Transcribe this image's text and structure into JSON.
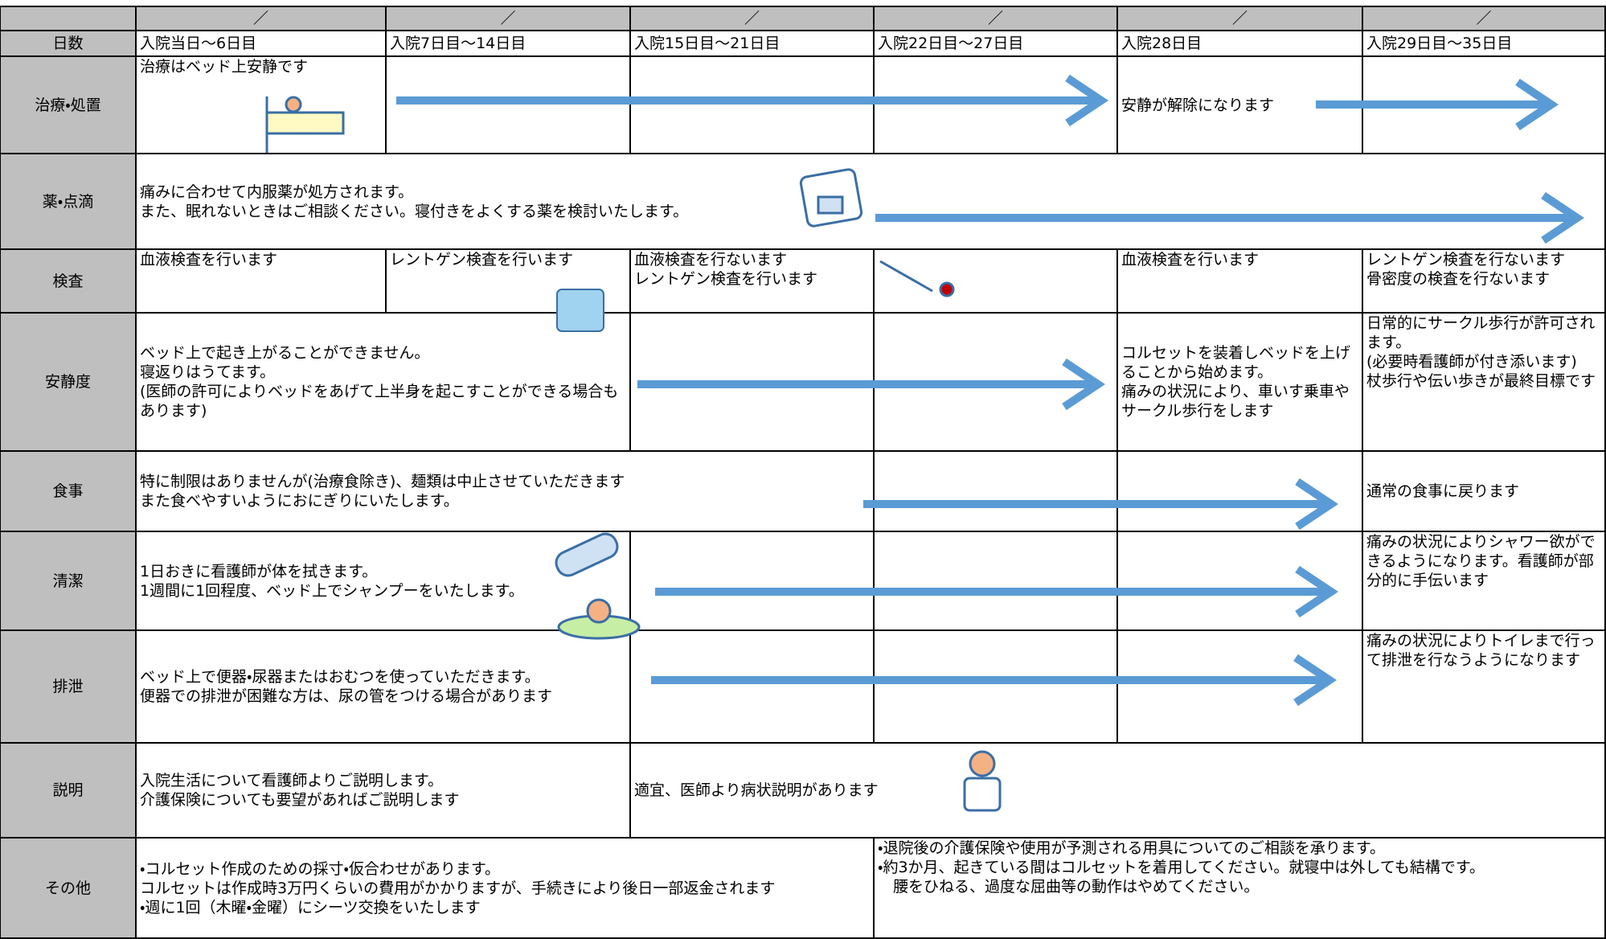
{
  "table": {
    "date_row": [
      "／",
      "／",
      "／",
      "／",
      "／",
      "／"
    ],
    "days_label": "日数",
    "days": [
      "入院当日～6日目",
      "入院7日目～14日目",
      "入院15日目～21日目",
      "入院22日目～27日目",
      "入院28日目",
      "入院29日目～35日目"
    ],
    "rows": [
      {
        "label": "治療・処置",
        "cells": [
          [
            "治療はベッド上安静です"
          ],
          [
            "安静が解除になります"
          ]
        ]
      },
      {
        "label": "薬・点滴",
        "cells": [
          [
            "痛みに合わせて内服薬が処方されます。",
            "また、眠れないときはご相談ください。寝付きをよくする薬を検討いたします。"
          ]
        ]
      },
      {
        "label": "検査",
        "cells": [
          [
            "血液検査を行います"
          ],
          [
            "レントゲン検査を行います"
          ],
          [
            "血液検査を行ないます",
            "レントゲン検査を行います"
          ],
          [
            "血液検査を行います"
          ],
          [
            "レントゲン検査を行ないます",
            "骨密度の検査を行ないます"
          ]
        ]
      },
      {
        "label": "安静度",
        "cells": [
          [
            "ベッド上で起き上がることができません。",
            "寝返りはうてます。",
            "(医師の許可によりベッドをあげて上半身を起こすことができる場合もあります)"
          ],
          [
            "コルセットを装着しベッドを上げることから始めます。",
            "痛みの状況により、車いす乗車やサークル歩行をします"
          ],
          [
            "日常的にサークル歩行が許可されます。",
            "(必要時看護師が付き添います)",
            "杖歩行や伝い歩きが最終目標です"
          ]
        ]
      },
      {
        "label": "食事",
        "cells": [
          [
            "特に制限はありませんが(治療食除き)、麺類は中止させていただきます",
            "また食べやすいようにおにぎりにいたします。"
          ],
          [
            "通常の食事に戻ります"
          ]
        ]
      },
      {
        "label": "清潔",
        "cells": [
          [
            "1日おきに看護師が体を拭きます。",
            "1週間に1回程度、ベッド上でシャンプーをいたします。"
          ],
          [
            "痛みの状況によりシャワー欲ができるようになります。看護師が部分的に手伝います"
          ]
        ]
      },
      {
        "label": "排泄",
        "cells": [
          [
            "ベッド上で便器・尿器またはおむつを使っていただきます。",
            "便器での排泄が困難な方は、尿の管をつける場合があります"
          ],
          [
            "痛みの状況によりトイレまで行って排泄を行なうようになります"
          ]
        ]
      },
      {
        "label": "説明",
        "cells": [
          [
            "入院生活について看護師よりご説明します。",
            "介護保険についても要望があればご説明します"
          ],
          [
            "適宜、医師より病状説明があります"
          ]
        ]
      },
      {
        "label": "その他",
        "cells": [
          [
            "・コルセット作成のための採寸・仮合わせがあります。",
            "コルセットは作成時3万円くらいの費用がかかりますが、手続きにより後日一部返金されます",
            "・週に1回（木曜・金曜）にシーツ交換をいたします"
          ],
          [
            "・退院後の介護保険や使用が予測される用具についてのご相談を承ります。",
            "・約3か月、起きている間はコルセットを着用してください。就寝中は外しても結構です。",
            "　腰をひねる、過度な屈曲等の動作はやめてください。"
          ]
        ]
      }
    ]
  }
}
